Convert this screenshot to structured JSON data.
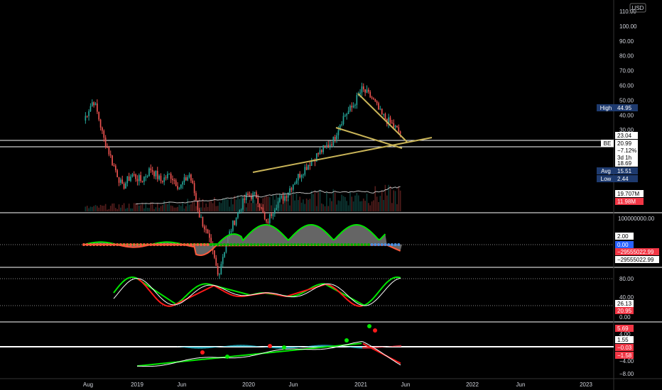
{
  "currency": "USD",
  "colors": {
    "background": "#000000",
    "up": "#26a69a",
    "down": "#ef5350",
    "trendline": "#c9b458",
    "ma": "#bbbbbb",
    "panel_border": "#ffffff",
    "axis_text": "#d1d4dc",
    "tag_blue": "#2962ff",
    "tag_red": "#f23645",
    "tag_navy": "#1e3a6e",
    "green_line": "#00e600",
    "red_line": "#ff1a1a",
    "white_line": "#ffffff"
  },
  "time_axis": {
    "labels": [
      "Aug",
      "2019",
      "Jun",
      "2020",
      "Jun",
      "2021",
      "Jun",
      "2022",
      "Jun",
      "2023"
    ]
  },
  "price_axis": {
    "ticks": [
      "110.00",
      "100.00",
      "90.00",
      "80.00",
      "70.00",
      "60.00",
      "50.00",
      "40.00",
      "30.00",
      "20.00",
      "10.00"
    ],
    "tags": {
      "high_label": "High",
      "high_value": "44.95",
      "level1": "23.04",
      "symbol": "BE",
      "last": "20.99",
      "change": "−7.12%",
      "countdown": "3d 1h",
      "level2": "18.69",
      "avg_label": "Avg",
      "avg_value": "15.51",
      "low_label": "Low",
      "low_value": "2.44",
      "vol_ma": "19.707M",
      "vol": "11.98M"
    }
  },
  "panels": {
    "obv": {
      "top_tick": "100000000.00",
      "tags": [
        "2.00",
        "0.00",
        "−29555022.99",
        "−29555022.99"
      ]
    },
    "stoch": {
      "ticks": [
        "80.00",
        "40.00",
        "0.00"
      ],
      "tags": [
        "26.13",
        "20.95"
      ]
    },
    "macd": {
      "ticks": [
        "4.00",
        "−4.00",
        "−8.00"
      ],
      "tags": [
        "5.69",
        "1.55",
        "−0.03",
        "−1.58"
      ]
    }
  },
  "chart_data": {
    "type": "candlestick",
    "symbol": "BE",
    "x": [
      "2018-08",
      "2018-09",
      "2018-10",
      "2018-11",
      "2018-12",
      "2019-01",
      "2019-02",
      "2019-03",
      "2019-04",
      "2019-05",
      "2019-06",
      "2019-07",
      "2019-08",
      "2019-09",
      "2019-10",
      "2019-11",
      "2019-12",
      "2020-01",
      "2020-02",
      "2020-03",
      "2020-04",
      "2020-05",
      "2020-06",
      "2020-07",
      "2020-08",
      "2020-09",
      "2020-10",
      "2020-11",
      "2020-12",
      "2021-01",
      "2021-02",
      "2021-03",
      "2021-04",
      "2021-05"
    ],
    "close": [
      25,
      33,
      20,
      14,
      10,
      12,
      11,
      13,
      11,
      12,
      10,
      12,
      7,
      5,
      3,
      5,
      7,
      9,
      9,
      6,
      8,
      9,
      11,
      13,
      15,
      17,
      19,
      26,
      30,
      38,
      34,
      27,
      24,
      20.99
    ],
    "high": 44.95,
    "low": 2.44,
    "avg": 15.51,
    "last": 20.99,
    "change_pct": -7.12,
    "levels": [
      23.04,
      18.69
    ],
    "ylim": [
      0,
      110
    ],
    "scale": "log"
  }
}
